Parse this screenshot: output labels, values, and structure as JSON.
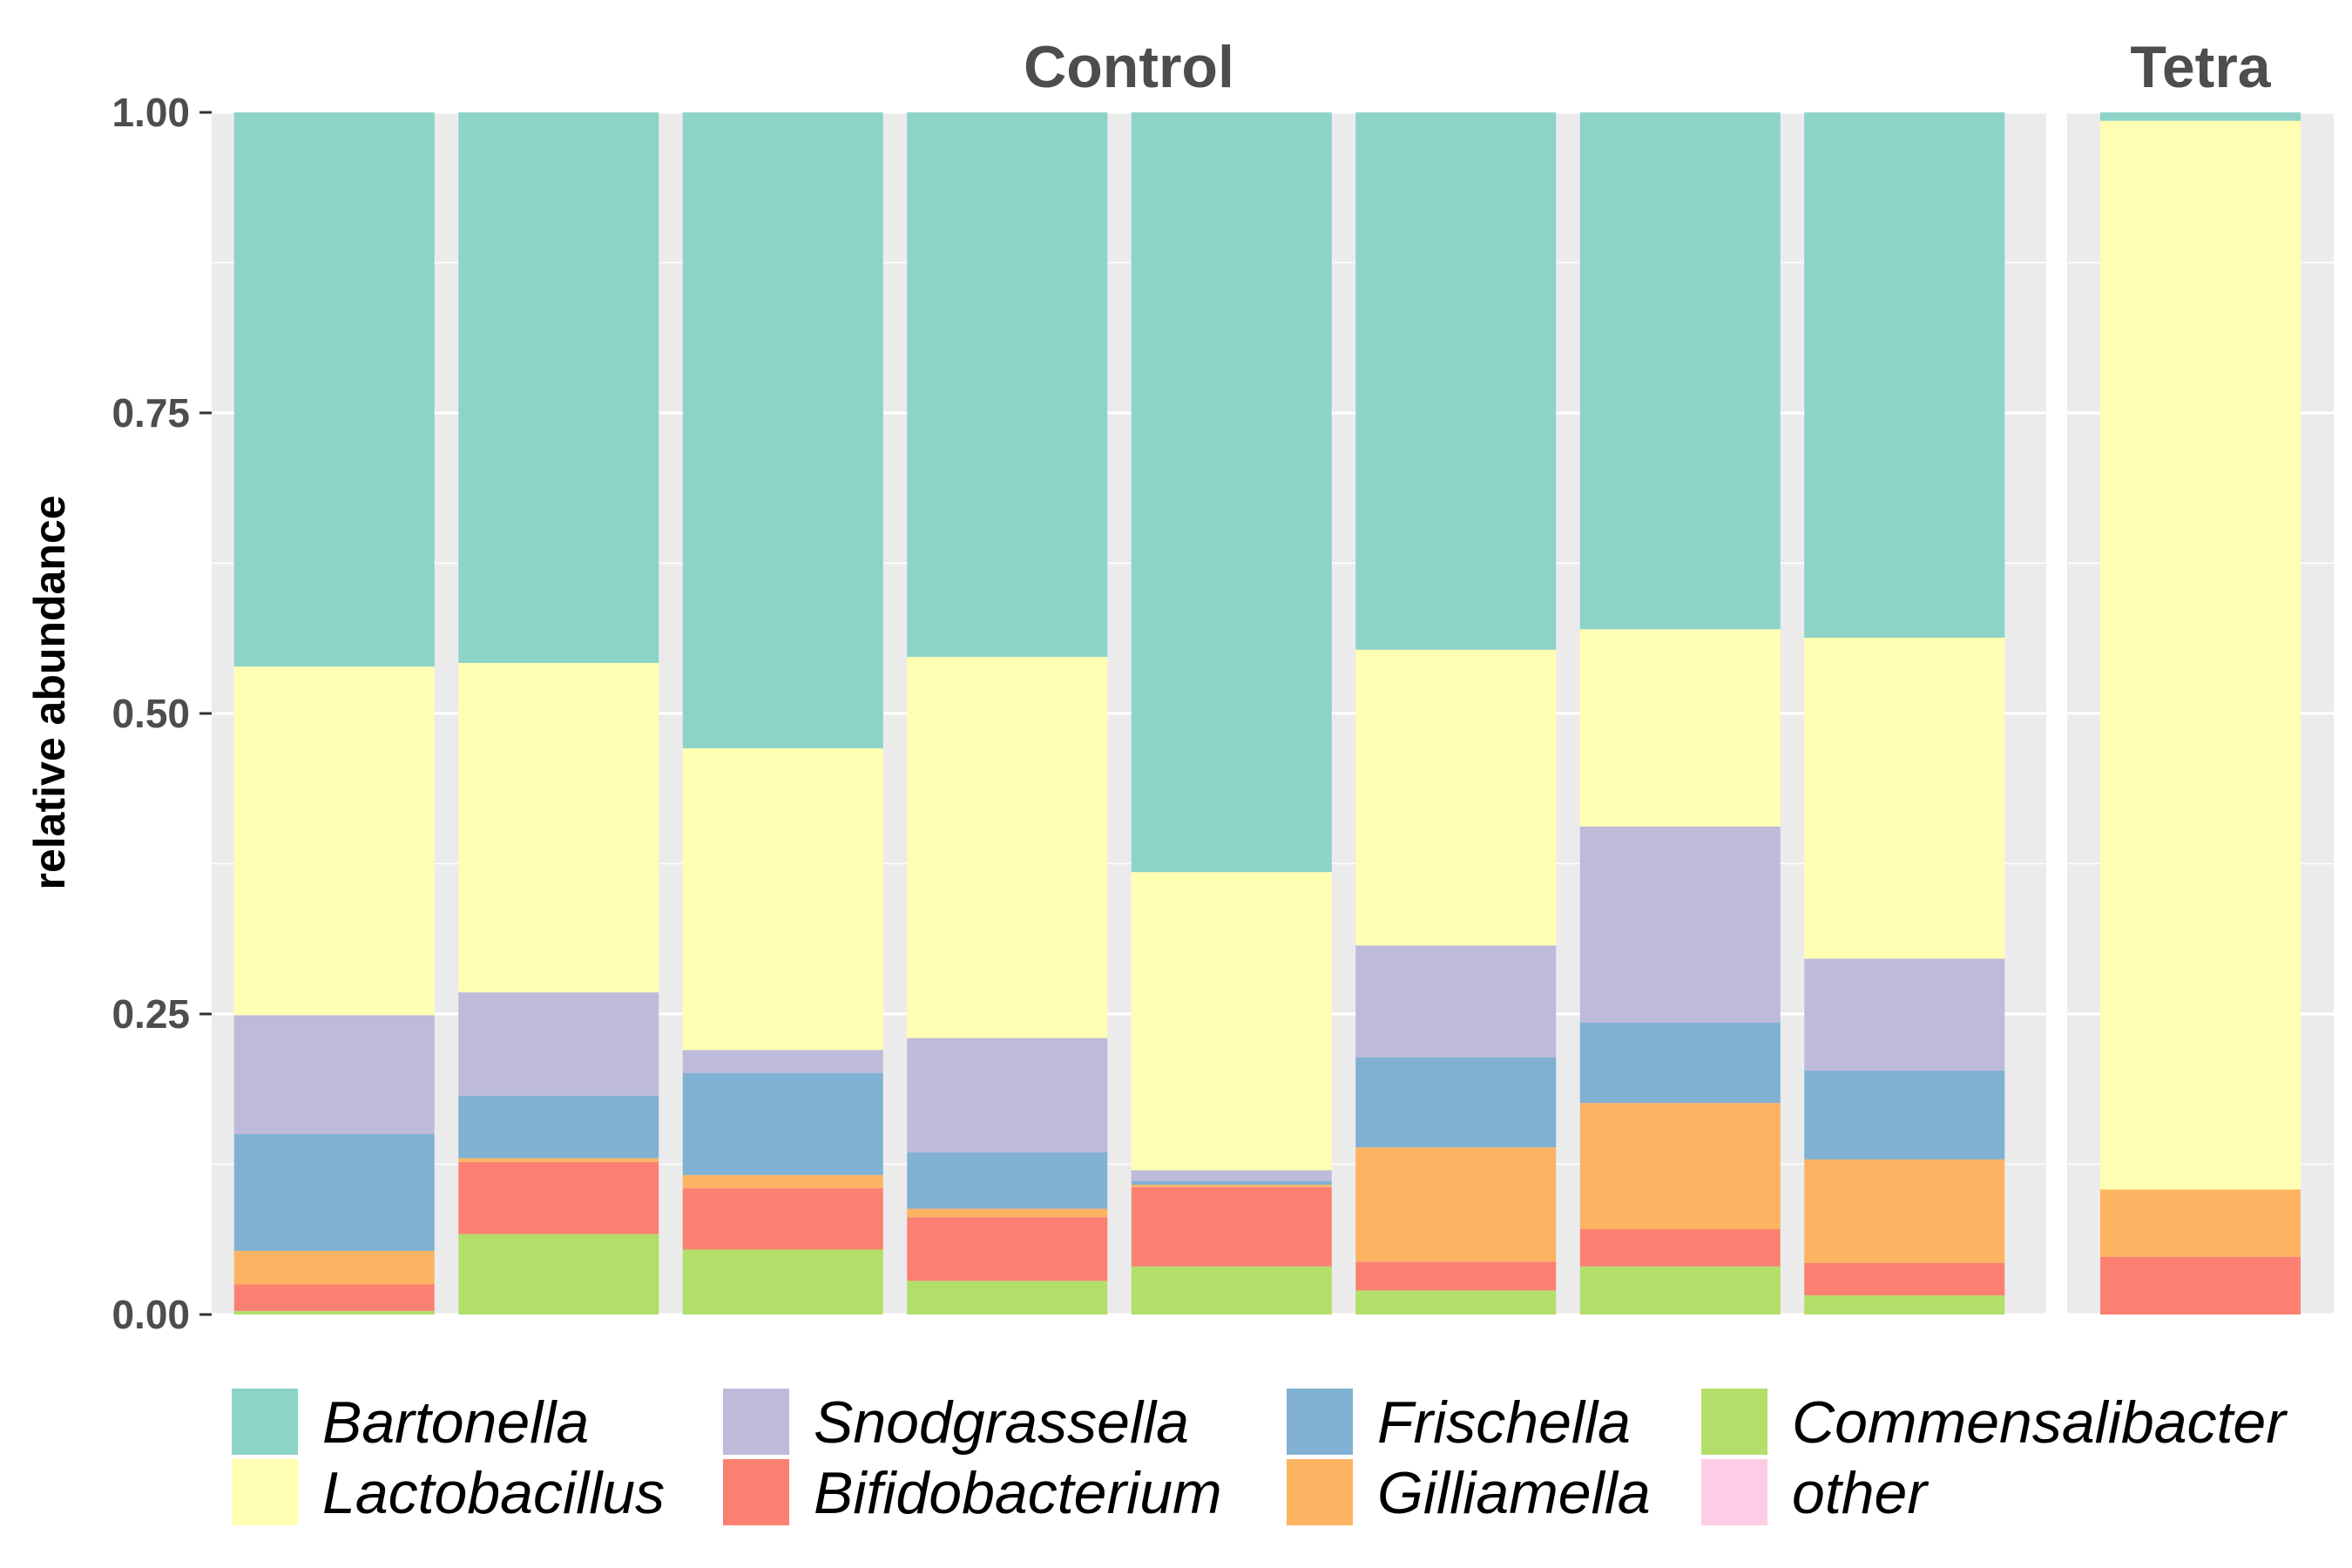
{
  "chart_data": {
    "type": "bar",
    "stacked": true,
    "ylabel": "relative abundance",
    "xlabel": "",
    "ylim": [
      0,
      1
    ],
    "yticks": [
      "0.00",
      "0.25",
      "0.50",
      "0.75",
      "1.00"
    ],
    "legend_position": "bottom",
    "stack_order": [
      "Commensalibacter",
      "Bifidobacterium",
      "Gilliamella",
      "Frischella",
      "Snodgrassella",
      "Lactobacillus",
      "Bartonella",
      "other"
    ],
    "legend": [
      {
        "name": "Bartonella",
        "color": "#8dd3c7"
      },
      {
        "name": "Lactobacillus",
        "color": "#ffffb3"
      },
      {
        "name": "Snodgrassella",
        "color": "#bebada"
      },
      {
        "name": "Bifidobacterium",
        "color": "#fb8072"
      },
      {
        "name": "Frischella",
        "color": "#80b1d3"
      },
      {
        "name": "Gilliamella",
        "color": "#fdb462"
      },
      {
        "name": "Commensalibacter",
        "color": "#b3de69"
      },
      {
        "name": "other",
        "color": "#fccde5"
      }
    ],
    "panels": [
      {
        "label": "Control",
        "samples": [
          {
            "Commensalibacter": 0.003,
            "Bifidobacterium": 0.022,
            "Gilliamella": 0.028,
            "Frischella": 0.097,
            "Snodgrassella": 0.099,
            "Lactobacillus": 0.29,
            "Bartonella": 0.461,
            "other": 0
          },
          {
            "Commensalibacter": 0.067,
            "Bifidobacterium": 0.06,
            "Gilliamella": 0.003,
            "Frischella": 0.052,
            "Snodgrassella": 0.086,
            "Lactobacillus": 0.274,
            "Bartonella": 0.458,
            "other": 0
          },
          {
            "Commensalibacter": 0.054,
            "Bifidobacterium": 0.051,
            "Gilliamella": 0.011,
            "Frischella": 0.085,
            "Snodgrassella": 0.019,
            "Lactobacillus": 0.251,
            "Bartonella": 0.529,
            "other": 0
          },
          {
            "Commensalibacter": 0.028,
            "Bifidobacterium": 0.053,
            "Gilliamella": 0.007,
            "Frischella": 0.047,
            "Snodgrassella": 0.095,
            "Lactobacillus": 0.317,
            "Bartonella": 0.453,
            "other": 0
          },
          {
            "Commensalibacter": 0.04,
            "Bifidobacterium": 0.066,
            "Gilliamella": 0.002,
            "Frischella": 0.003,
            "Snodgrassella": 0.009,
            "Lactobacillus": 0.248,
            "Bartonella": 0.632,
            "other": 0
          },
          {
            "Commensalibacter": 0.02,
            "Bifidobacterium": 0.024,
            "Gilliamella": 0.095,
            "Frischella": 0.075,
            "Snodgrassella": 0.093,
            "Lactobacillus": 0.246,
            "Bartonella": 0.447,
            "other": 0
          },
          {
            "Commensalibacter": 0.04,
            "Bifidobacterium": 0.031,
            "Gilliamella": 0.105,
            "Frischella": 0.067,
            "Snodgrassella": 0.163,
            "Lactobacillus": 0.164,
            "Bartonella": 0.43,
            "other": 0
          },
          {
            "Commensalibacter": 0.016,
            "Bifidobacterium": 0.027,
            "Gilliamella": 0.086,
            "Frischella": 0.074,
            "Snodgrassella": 0.093,
            "Lactobacillus": 0.267,
            "Bartonella": 0.437,
            "other": 0
          }
        ]
      },
      {
        "label": "Tetra",
        "samples": [
          {
            "Commensalibacter": 0,
            "Bifidobacterium": 0.048,
            "Gilliamella": 0.056,
            "Frischella": 0,
            "Snodgrassella": 0,
            "Lactobacillus": 0.889,
            "Bartonella": 0.007,
            "other": 0
          }
        ]
      }
    ]
  }
}
